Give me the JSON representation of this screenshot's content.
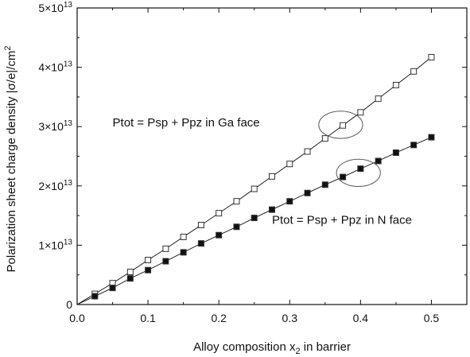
{
  "chart_data": {
    "type": "line",
    "xlabel": "Alloy composition x",
    "xlabel_sub": "2",
    "xlabel_tail": " in barrier",
    "ylabel": "Polarization sheet charge density |σ/e|/cm",
    "ylabel_sup": "2",
    "xlim": [
      0.0,
      0.55
    ],
    "ylim": [
      0,
      50000000000000.0
    ],
    "x_ticks": [
      {
        "value": 0.0,
        "label": "0.0"
      },
      {
        "value": 0.1,
        "label": "0.1"
      },
      {
        "value": 0.2,
        "label": "0.2"
      },
      {
        "value": 0.3,
        "label": "0.3"
      },
      {
        "value": 0.4,
        "label": "0.4"
      },
      {
        "value": 0.5,
        "label": "0.5"
      }
    ],
    "y_ticks": [
      {
        "value": 0,
        "label": "0",
        "exp": ""
      },
      {
        "value": 10000000000000.0,
        "label": "1×10",
        "exp": "13"
      },
      {
        "value": 20000000000000.0,
        "label": "2×10",
        "exp": "13"
      },
      {
        "value": 30000000000000.0,
        "label": "3×10",
        "exp": "13"
      },
      {
        "value": 40000000000000.0,
        "label": "4×10",
        "exp": "13"
      },
      {
        "value": 50000000000000.0,
        "label": "5×10",
        "exp": "13"
      }
    ],
    "grid": false,
    "legend": "none",
    "series": [
      {
        "marker": "open-square",
        "color": "#222222",
        "x": [
          0,
          0.025,
          0.05,
          0.075,
          0.1,
          0.125,
          0.15,
          0.175,
          0.2,
          0.225,
          0.25,
          0.275,
          0.3,
          0.325,
          0.35,
          0.375,
          0.4,
          0.425,
          0.45,
          0.475,
          0.5
        ],
        "y": [
          0,
          1800000000000.0,
          3600000000000.0,
          5500000000000.0,
          7500000000000.0,
          9400000000000.0,
          11400000000000.0,
          13400000000000.0,
          15400000000000.0,
          17400000000000.0,
          19500000000000.0,
          21600000000000.0,
          23700000000000.0,
          25800000000000.0,
          28000000000000.0,
          30200000000000.0,
          32400000000000.0,
          34700000000000.0,
          37000000000000.0,
          39300000000000.0,
          41700000000000.0
        ]
      },
      {
        "marker": "filled-square",
        "color": "#222222",
        "x": [
          0,
          0.025,
          0.05,
          0.075,
          0.1,
          0.125,
          0.15,
          0.175,
          0.2,
          0.225,
          0.25,
          0.275,
          0.3,
          0.325,
          0.35,
          0.375,
          0.4,
          0.425,
          0.45,
          0.475,
          0.5
        ],
        "y": [
          0,
          1400000000000.0,
          2800000000000.0,
          4400000000000.0,
          5800000000000.0,
          7300000000000.0,
          8800000000000.0,
          10300000000000.0,
          11700000000000.0,
          13100000000000.0,
          14600000000000.0,
          16000000000000.0,
          17400000000000.0,
          18800000000000.0,
          20200000000000.0,
          21500000000000.0,
          22900000000000.0,
          24200000000000.0,
          25600000000000.0,
          26900000000000.0,
          28200000000000.0
        ]
      }
    ],
    "annotations": [
      {
        "text": "Ptot = Psp + Ppz in Ga face",
        "x": 0.05,
        "y": 30000000000000.0
      },
      {
        "text": "Ptot = Psp + Ppz in N face",
        "x": 0.275,
        "y": 13600000000000.0
      }
    ],
    "highlight_ellipses": [
      {
        "cx": 0.372,
        "cy": 30300000000000.0,
        "rx": 0.031,
        "ry": 2300000000000.0
      },
      {
        "cx": 0.397,
        "cy": 22200000000000.0,
        "rx": 0.031,
        "ry": 2300000000000.0
      }
    ]
  }
}
